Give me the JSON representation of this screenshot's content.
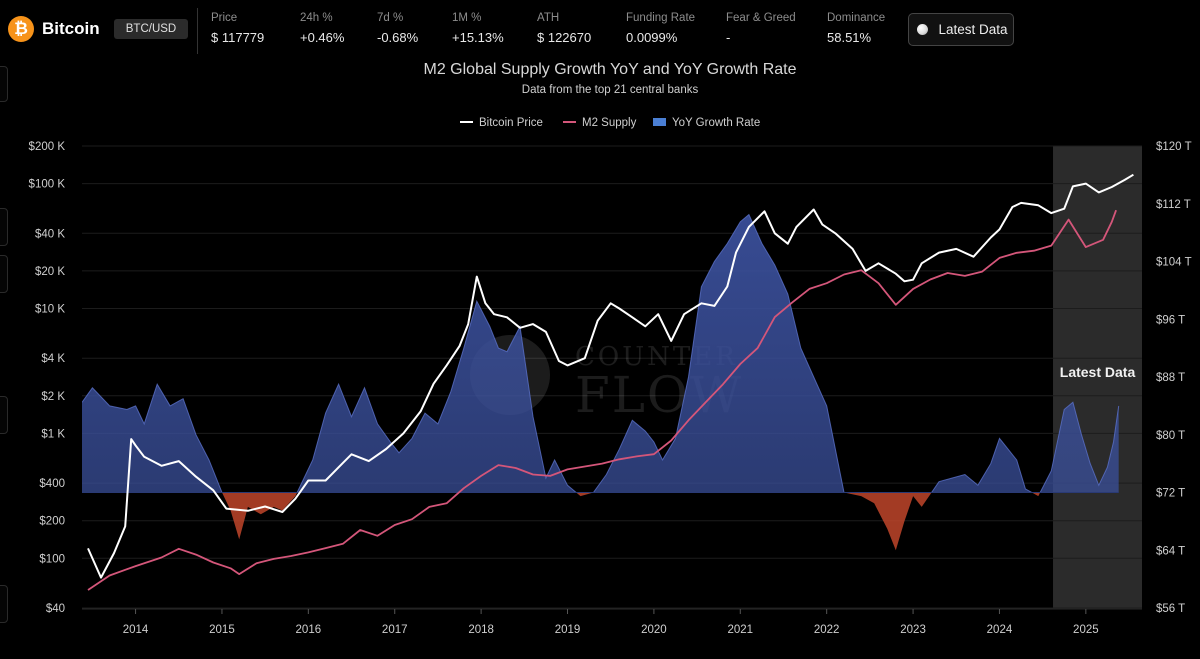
{
  "header": {
    "coin_logo": "₿",
    "coin_name": "Bitcoin",
    "pair": "BTC/USD",
    "stats": [
      {
        "label": "Price",
        "value": "$ 117779"
      },
      {
        "label": "24h %",
        "value": "+0.46%"
      },
      {
        "label": "7d %",
        "value": "-0.68%"
      },
      {
        "label": "1M %",
        "value": "+15.13%"
      },
      {
        "label": "ATH",
        "value": "$ 122670"
      },
      {
        "label": "Funding Rate",
        "value": "0.0099%"
      },
      {
        "label": "Fear & Greed",
        "value": "-"
      },
      {
        "label": "Dominance",
        "value": "58.51%"
      }
    ],
    "latest_button": "Latest Data"
  },
  "watermark": {
    "line1": "COUNTER",
    "line2": "FLOW",
    "logo_glyph": "₿"
  },
  "colors": {
    "btc_line": "#ffffff",
    "m2_line": "#d4567a",
    "growth_positive": "#3a4f9a",
    "growth_negative": "#c0452a",
    "highlight_band": "#3a3a3a",
    "background": "#000000"
  },
  "chart_data": {
    "type": "line",
    "title": "M2 Global Supply Growth YoY and YoY Growth Rate",
    "subtitle": "Data from the top 21 central banks",
    "legend": [
      "Bitcoin Price",
      "M2 Supply",
      "YoY Growth Rate"
    ],
    "legend_position": "top-center",
    "annotation": "Latest Data",
    "highlight_range": [
      2024.62,
      2025.65
    ],
    "x_range": [
      2013.38,
      2025.65
    ],
    "x_ticks": [
      "2014",
      "2015",
      "2016",
      "2017",
      "2018",
      "2019",
      "2020",
      "2021",
      "2022",
      "2023",
      "2024",
      "2025"
    ],
    "left_axis": {
      "scale": "log",
      "ylim": [
        40,
        200000
      ],
      "tick_values": [
        40,
        100,
        200,
        400,
        1000,
        2000,
        4000,
        10000,
        20000,
        40000,
        100000,
        200000
      ],
      "tick_labels": [
        "$40",
        "$100",
        "$200",
        "$400",
        "$1 K",
        "$2 K",
        "$4 K",
        "$10 K",
        "$20 K",
        "$40 K",
        "$100 K",
        "$200 K"
      ]
    },
    "right_axis": {
      "scale": "linear",
      "ylim": [
        56,
        120
      ],
      "tick_values": [
        56,
        64,
        72,
        80,
        88,
        96,
        104,
        112,
        120
      ],
      "tick_labels": [
        "$56 T",
        "$64 T",
        "$72 T",
        "$80 T",
        "$88 T",
        "$96 T",
        "$104 T",
        "$112 T",
        "$120 T"
      ]
    },
    "series": [
      {
        "name": "Bitcoin Price",
        "axis": "left",
        "points": [
          [
            2013.45,
            120
          ],
          [
            2013.6,
            70
          ],
          [
            2013.75,
            110
          ],
          [
            2013.88,
            180
          ],
          [
            2013.95,
            900
          ],
          [
            2014.0,
            800
          ],
          [
            2014.1,
            650
          ],
          [
            2014.3,
            550
          ],
          [
            2014.5,
            600
          ],
          [
            2014.7,
            450
          ],
          [
            2014.9,
            350
          ],
          [
            2015.05,
            250
          ],
          [
            2015.3,
            240
          ],
          [
            2015.5,
            260
          ],
          [
            2015.7,
            235
          ],
          [
            2015.85,
            300
          ],
          [
            2016.0,
            420
          ],
          [
            2016.2,
            420
          ],
          [
            2016.4,
            580
          ],
          [
            2016.5,
            680
          ],
          [
            2016.7,
            600
          ],
          [
            2016.9,
            750
          ],
          [
            2017.1,
            1000
          ],
          [
            2017.3,
            1500
          ],
          [
            2017.45,
            2500
          ],
          [
            2017.6,
            3500
          ],
          [
            2017.75,
            5000
          ],
          [
            2017.85,
            7500
          ],
          [
            2017.95,
            18000
          ],
          [
            2018.05,
            11000
          ],
          [
            2018.15,
            9000
          ],
          [
            2018.3,
            8500
          ],
          [
            2018.45,
            7000
          ],
          [
            2018.6,
            7500
          ],
          [
            2018.75,
            6500
          ],
          [
            2018.9,
            3800
          ],
          [
            2019.0,
            3500
          ],
          [
            2019.2,
            4000
          ],
          [
            2019.35,
            8000
          ],
          [
            2019.5,
            11000
          ],
          [
            2019.6,
            10000
          ],
          [
            2019.75,
            8500
          ],
          [
            2019.9,
            7200
          ],
          [
            2020.05,
            9000
          ],
          [
            2020.2,
            5500
          ],
          [
            2020.35,
            9000
          ],
          [
            2020.55,
            11000
          ],
          [
            2020.7,
            10500
          ],
          [
            2020.85,
            15000
          ],
          [
            2020.95,
            28000
          ],
          [
            2021.1,
            45000
          ],
          [
            2021.28,
            60000
          ],
          [
            2021.4,
            40000
          ],
          [
            2021.55,
            33000
          ],
          [
            2021.65,
            45000
          ],
          [
            2021.85,
            62000
          ],
          [
            2021.95,
            47000
          ],
          [
            2022.1,
            40000
          ],
          [
            2022.3,
            30000
          ],
          [
            2022.45,
            20000
          ],
          [
            2022.6,
            23000
          ],
          [
            2022.8,
            19000
          ],
          [
            2022.9,
            16500
          ],
          [
            2023.0,
            17000
          ],
          [
            2023.1,
            23000
          ],
          [
            2023.3,
            28000
          ],
          [
            2023.5,
            30000
          ],
          [
            2023.7,
            26000
          ],
          [
            2023.9,
            37000
          ],
          [
            2024.0,
            43000
          ],
          [
            2024.15,
            65000
          ],
          [
            2024.25,
            70000
          ],
          [
            2024.45,
            67000
          ],
          [
            2024.6,
            58000
          ],
          [
            2024.75,
            63000
          ],
          [
            2024.85,
            95000
          ],
          [
            2025.0,
            100000
          ],
          [
            2025.15,
            85000
          ],
          [
            2025.3,
            94000
          ],
          [
            2025.45,
            107000
          ],
          [
            2025.55,
            117779
          ]
        ]
      },
      {
        "name": "M2 Supply",
        "axis": "right",
        "points": [
          [
            2013.45,
            58.5
          ],
          [
            2013.7,
            60.5
          ],
          [
            2014.0,
            61.8
          ],
          [
            2014.3,
            63.0
          ],
          [
            2014.5,
            64.2
          ],
          [
            2014.7,
            63.4
          ],
          [
            2014.9,
            62.3
          ],
          [
            2015.1,
            61.5
          ],
          [
            2015.2,
            60.7
          ],
          [
            2015.4,
            62.2
          ],
          [
            2015.6,
            62.8
          ],
          [
            2015.8,
            63.2
          ],
          [
            2016.0,
            63.7
          ],
          [
            2016.2,
            64.3
          ],
          [
            2016.4,
            64.9
          ],
          [
            2016.6,
            66.8
          ],
          [
            2016.8,
            66.0
          ],
          [
            2017.0,
            67.5
          ],
          [
            2017.2,
            68.3
          ],
          [
            2017.4,
            70.0
          ],
          [
            2017.6,
            70.5
          ],
          [
            2017.8,
            72.6
          ],
          [
            2018.0,
            74.3
          ],
          [
            2018.2,
            75.8
          ],
          [
            2018.4,
            75.4
          ],
          [
            2018.6,
            74.5
          ],
          [
            2018.8,
            74.3
          ],
          [
            2019.0,
            75.2
          ],
          [
            2019.2,
            75.6
          ],
          [
            2019.4,
            76.0
          ],
          [
            2019.6,
            76.6
          ],
          [
            2019.8,
            77.0
          ],
          [
            2020.0,
            77.3
          ],
          [
            2020.2,
            79.2
          ],
          [
            2020.4,
            82.0
          ],
          [
            2020.6,
            84.5
          ],
          [
            2020.8,
            87.0
          ],
          [
            2021.0,
            89.8
          ],
          [
            2021.2,
            92.0
          ],
          [
            2021.4,
            96.3
          ],
          [
            2021.6,
            98.3
          ],
          [
            2021.8,
            100.2
          ],
          [
            2022.0,
            101.0
          ],
          [
            2022.2,
            102.2
          ],
          [
            2022.4,
            102.8
          ],
          [
            2022.6,
            101.0
          ],
          [
            2022.8,
            98.0
          ],
          [
            2023.0,
            100.2
          ],
          [
            2023.2,
            101.5
          ],
          [
            2023.4,
            102.4
          ],
          [
            2023.6,
            102.0
          ],
          [
            2023.8,
            102.6
          ],
          [
            2024.0,
            104.5
          ],
          [
            2024.2,
            105.2
          ],
          [
            2024.4,
            105.5
          ],
          [
            2024.6,
            106.2
          ],
          [
            2024.8,
            109.8
          ],
          [
            2025.0,
            106.0
          ],
          [
            2025.2,
            107.0
          ],
          [
            2025.3,
            109.5
          ],
          [
            2025.35,
            111.1
          ]
        ]
      },
      {
        "name": "YoY Growth Rate",
        "axis": "right",
        "baseline": 72,
        "points": [
          [
            2013.38,
            84.5
          ],
          [
            2013.5,
            86.5
          ],
          [
            2013.7,
            84.0
          ],
          [
            2013.9,
            83.5
          ],
          [
            2014.0,
            84.0
          ],
          [
            2014.1,
            81.5
          ],
          [
            2014.25,
            87.0
          ],
          [
            2014.4,
            84.0
          ],
          [
            2014.55,
            85.0
          ],
          [
            2014.7,
            80.0
          ],
          [
            2014.85,
            76.5
          ],
          [
            2015.0,
            72.0
          ],
          [
            2015.1,
            69.5
          ],
          [
            2015.2,
            65.5
          ],
          [
            2015.3,
            70.0
          ],
          [
            2015.45,
            69.0
          ],
          [
            2015.6,
            70.0
          ],
          [
            2015.7,
            69.5
          ],
          [
            2015.85,
            71.5
          ],
          [
            2016.05,
            76.5
          ],
          [
            2016.2,
            83.0
          ],
          [
            2016.35,
            87.0
          ],
          [
            2016.5,
            82.5
          ],
          [
            2016.65,
            86.5
          ],
          [
            2016.8,
            81.5
          ],
          [
            2016.95,
            79.0
          ],
          [
            2017.05,
            77.5
          ],
          [
            2017.2,
            79.5
          ],
          [
            2017.35,
            83.0
          ],
          [
            2017.5,
            81.5
          ],
          [
            2017.65,
            86.0
          ],
          [
            2017.8,
            92.0
          ],
          [
            2017.95,
            98.5
          ],
          [
            2018.1,
            95.0
          ],
          [
            2018.2,
            92.0
          ],
          [
            2018.3,
            91.5
          ],
          [
            2018.45,
            95.0
          ],
          [
            2018.6,
            82.5
          ],
          [
            2018.75,
            74.0
          ],
          [
            2018.85,
            76.5
          ],
          [
            2019.0,
            73.0
          ],
          [
            2019.15,
            71.5
          ],
          [
            2019.3,
            72.0
          ],
          [
            2019.45,
            74.5
          ],
          [
            2019.6,
            78.0
          ],
          [
            2019.75,
            82.0
          ],
          [
            2019.9,
            80.5
          ],
          [
            2020.0,
            79.0
          ],
          [
            2020.1,
            76.5
          ],
          [
            2020.25,
            79.5
          ],
          [
            2020.4,
            88.0
          ],
          [
            2020.55,
            100.5
          ],
          [
            2020.7,
            104.0
          ],
          [
            2020.85,
            106.5
          ],
          [
            2021.0,
            109.5
          ],
          [
            2021.1,
            110.5
          ],
          [
            2021.25,
            106.5
          ],
          [
            2021.4,
            103.5
          ],
          [
            2021.55,
            99.5
          ],
          [
            2021.7,
            92.0
          ],
          [
            2021.85,
            88.0
          ],
          [
            2022.0,
            84.0
          ],
          [
            2022.2,
            72.0
          ],
          [
            2022.4,
            71.5
          ],
          [
            2022.55,
            70.5
          ],
          [
            2022.7,
            67.0
          ],
          [
            2022.8,
            64.0
          ],
          [
            2022.9,
            68.0
          ],
          [
            2023.0,
            71.5
          ],
          [
            2023.1,
            70.0
          ],
          [
            2023.3,
            73.5
          ],
          [
            2023.45,
            74.0
          ],
          [
            2023.6,
            74.5
          ],
          [
            2023.75,
            73.0
          ],
          [
            2023.9,
            76.0
          ],
          [
            2024.0,
            79.5
          ],
          [
            2024.1,
            78.0
          ],
          [
            2024.2,
            76.5
          ],
          [
            2024.3,
            72.5
          ],
          [
            2024.45,
            71.5
          ],
          [
            2024.6,
            75.0
          ],
          [
            2024.75,
            83.5
          ],
          [
            2024.85,
            84.5
          ],
          [
            2024.95,
            80.0
          ],
          [
            2025.05,
            76.0
          ],
          [
            2025.15,
            73.0
          ],
          [
            2025.25,
            75.5
          ],
          [
            2025.32,
            79.0
          ],
          [
            2025.38,
            84.0
          ]
        ]
      }
    ]
  }
}
